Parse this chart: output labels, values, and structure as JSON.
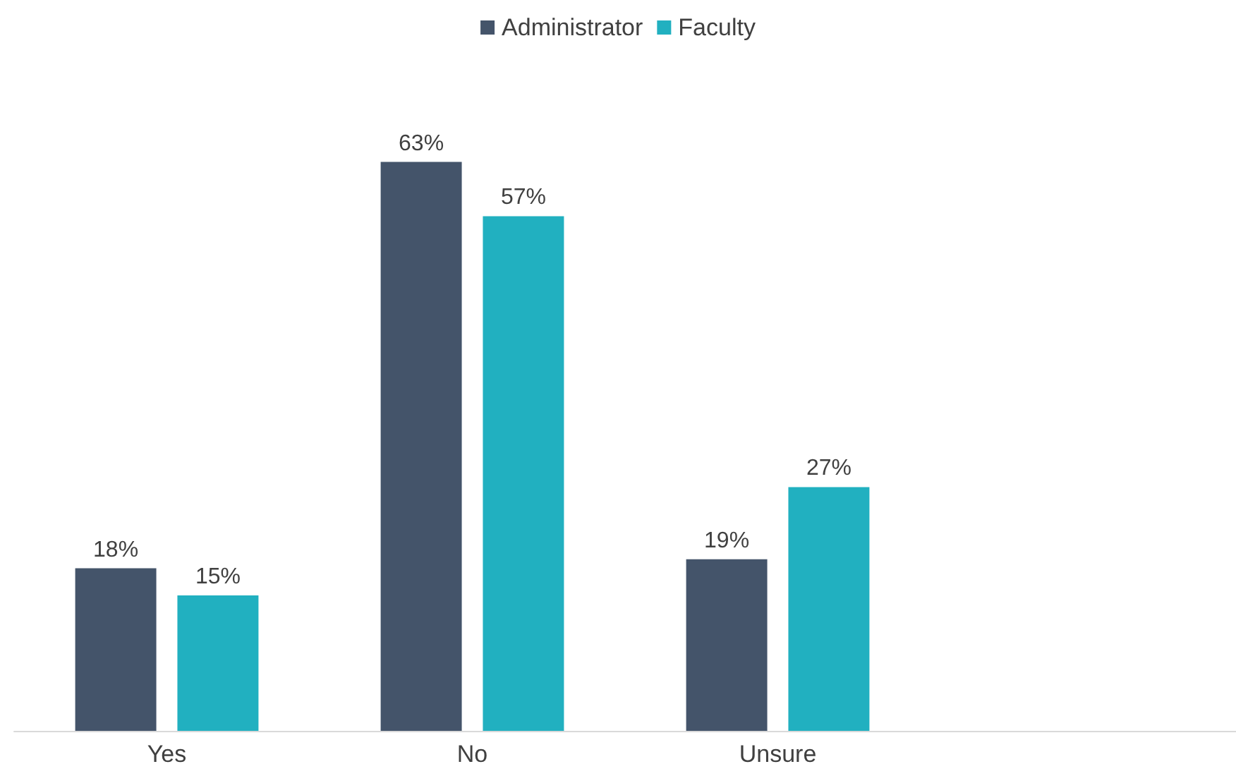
{
  "chart_data": {
    "type": "bar",
    "categories": [
      "Yes",
      "No",
      "Unsure",
      null
    ],
    "series": [
      {
        "name": "Administrator",
        "color": "#44546a",
        "values": [
          18,
          63,
          19,
          null
        ],
        "value_labels": [
          "18%",
          "63%",
          "19%",
          null
        ]
      },
      {
        "name": "Faculty",
        "color": "#21b0c0",
        "values": [
          15,
          57,
          27,
          null
        ],
        "value_labels": [
          "15%",
          "57%",
          "27%",
          null
        ]
      }
    ],
    "legend": "top",
    "grid": false
  }
}
